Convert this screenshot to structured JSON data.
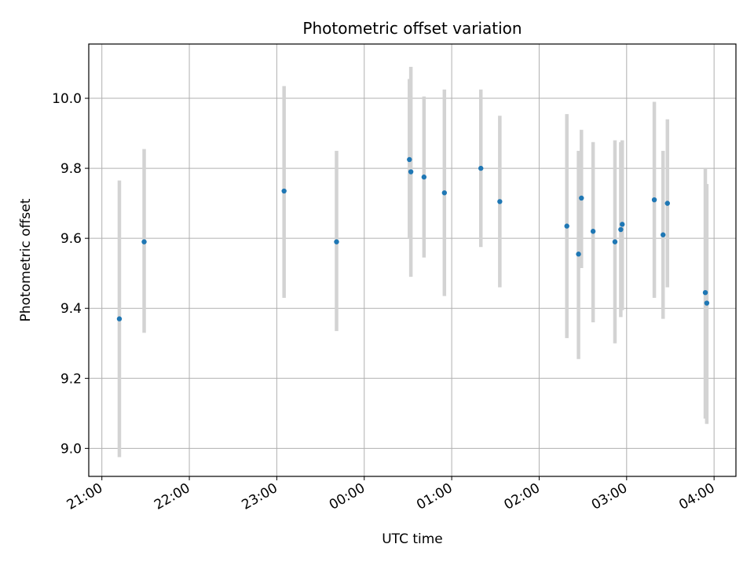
{
  "chart_data": {
    "type": "scatter",
    "title": "Photometric offset variation",
    "xlabel": "UTC time",
    "ylabel": "Photometric offset",
    "grid": true,
    "x_unit": "UTC clock time (21:00 on day 1 through 04:00 on day 2)",
    "x_ticks": [
      "21:00",
      "22:00",
      "23:00",
      "00:00",
      "01:00",
      "02:00",
      "03:00",
      "04:00"
    ],
    "xlim": [
      "20:51",
      "04:15"
    ],
    "y_ticks": [
      "9.0",
      "9.2",
      "9.4",
      "9.6",
      "9.8",
      "10.0"
    ],
    "ylim": [
      8.92,
      10.155
    ],
    "series": [
      {
        "marker_color": "#1f77b4",
        "errorbar_color": "#d3d3d3",
        "points": [
          {
            "x": "21:12",
            "y": 9.37,
            "low": 8.975,
            "high": 9.765
          },
          {
            "x": "21:29",
            "y": 9.59,
            "low": 9.33,
            "high": 9.855
          },
          {
            "x": "23:05",
            "y": 9.735,
            "low": 9.43,
            "high": 10.035
          },
          {
            "x": "23:41",
            "y": 9.59,
            "low": 9.335,
            "high": 9.85
          },
          {
            "x": "00:31",
            "y": 9.825,
            "low": 9.6,
            "high": 10.055
          },
          {
            "x": "00:32",
            "y": 9.79,
            "low": 9.49,
            "high": 10.09
          },
          {
            "x": "00:41",
            "y": 9.775,
            "low": 9.545,
            "high": 10.005
          },
          {
            "x": "00:55",
            "y": 9.73,
            "low": 9.435,
            "high": 10.025
          },
          {
            "x": "01:20",
            "y": 9.8,
            "low": 9.575,
            "high": 10.025
          },
          {
            "x": "01:33",
            "y": 9.705,
            "low": 9.46,
            "high": 9.95
          },
          {
            "x": "02:19",
            "y": 9.635,
            "low": 9.315,
            "high": 9.955
          },
          {
            "x": "02:27",
            "y": 9.555,
            "low": 9.255,
            "high": 9.85
          },
          {
            "x": "02:29",
            "y": 9.715,
            "low": 9.515,
            "high": 9.91
          },
          {
            "x": "02:37",
            "y": 9.62,
            "low": 9.36,
            "high": 9.875
          },
          {
            "x": "02:52",
            "y": 9.59,
            "low": 9.3,
            "high": 9.88
          },
          {
            "x": "02:56",
            "y": 9.625,
            "low": 9.375,
            "high": 9.875
          },
          {
            "x": "02:57",
            "y": 9.64,
            "low": 9.395,
            "high": 9.88
          },
          {
            "x": "03:19",
            "y": 9.71,
            "low": 9.43,
            "high": 9.99
          },
          {
            "x": "03:25",
            "y": 9.61,
            "low": 9.37,
            "high": 9.85
          },
          {
            "x": "03:28",
            "y": 9.7,
            "low": 9.46,
            "high": 9.94
          },
          {
            "x": "03:54",
            "y": 9.445,
            "low": 9.085,
            "high": 9.8
          },
          {
            "x": "03:55",
            "y": 9.415,
            "low": 9.07,
            "high": 9.755
          }
        ]
      }
    ]
  }
}
